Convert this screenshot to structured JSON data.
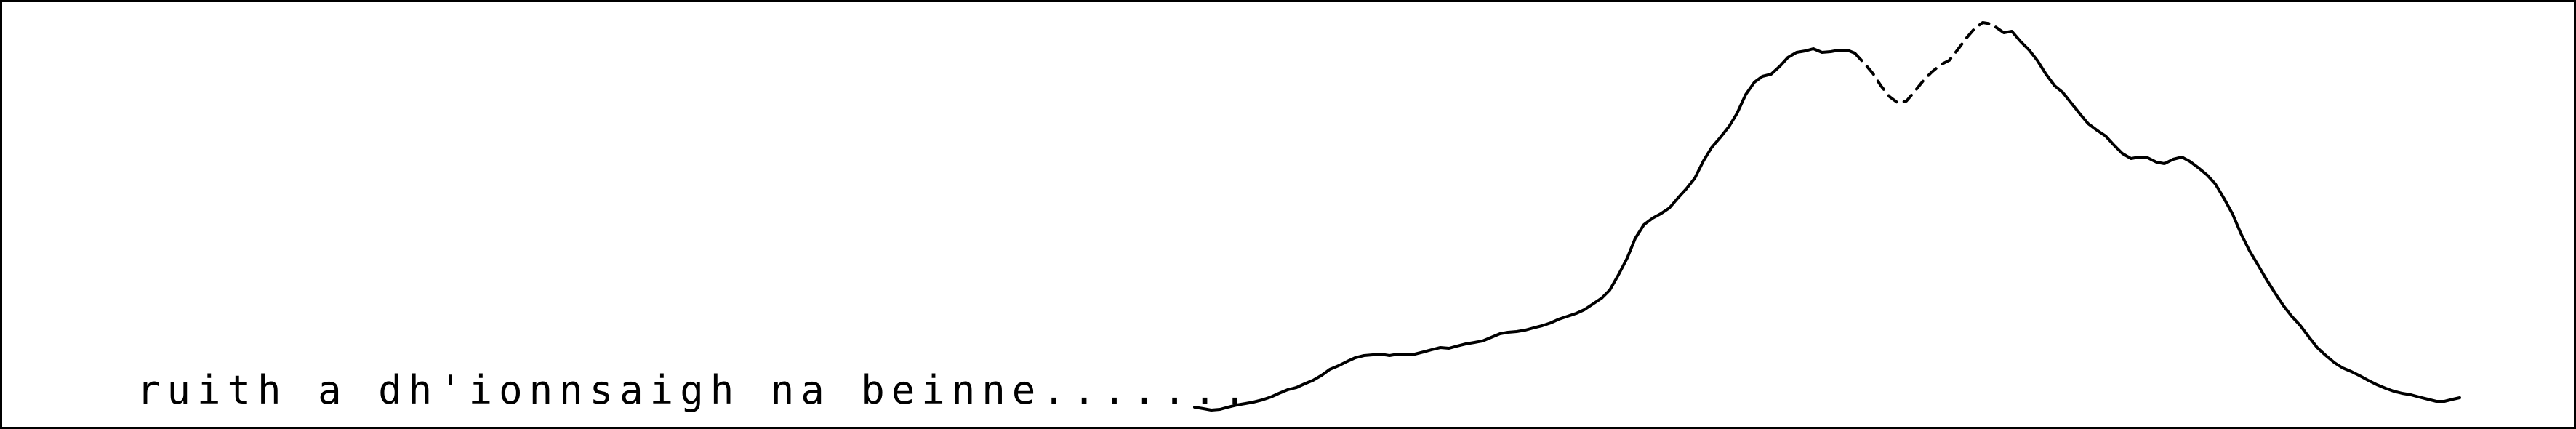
{
  "caption": "ruith a dh'ionnsaigh na beinne.......",
  "colors": {
    "line": "#000000",
    "background": "#ffffff",
    "border": "#000000"
  }
}
